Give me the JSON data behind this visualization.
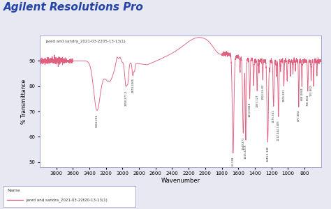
{
  "title": "Agilent Resolutions Pro",
  "xlabel": "Wavenumber",
  "ylabel": "% Transmittance",
  "legend_name": "jared and sandra_2021-03-22t20-13-13(1)",
  "spectrum_label": "jared and sandra_2021-03-2205-13-13(1)",
  "line_color": "#e06080",
  "fig_bg": "#f0f0f8",
  "plot_bg": "#ffffff",
  "spine_color": "#9999cc",
  "title_color": "#2244aa",
  "xmin": 600,
  "xmax": 4000,
  "ymin": 48,
  "ymax": 100,
  "yticks": [
    50,
    60,
    70,
    80,
    90
  ],
  "xticks": [
    3800,
    3600,
    3400,
    3200,
    3000,
    2800,
    2600,
    2400,
    2200,
    2000,
    1800,
    1600,
    1400,
    1200,
    1000,
    800
  ]
}
